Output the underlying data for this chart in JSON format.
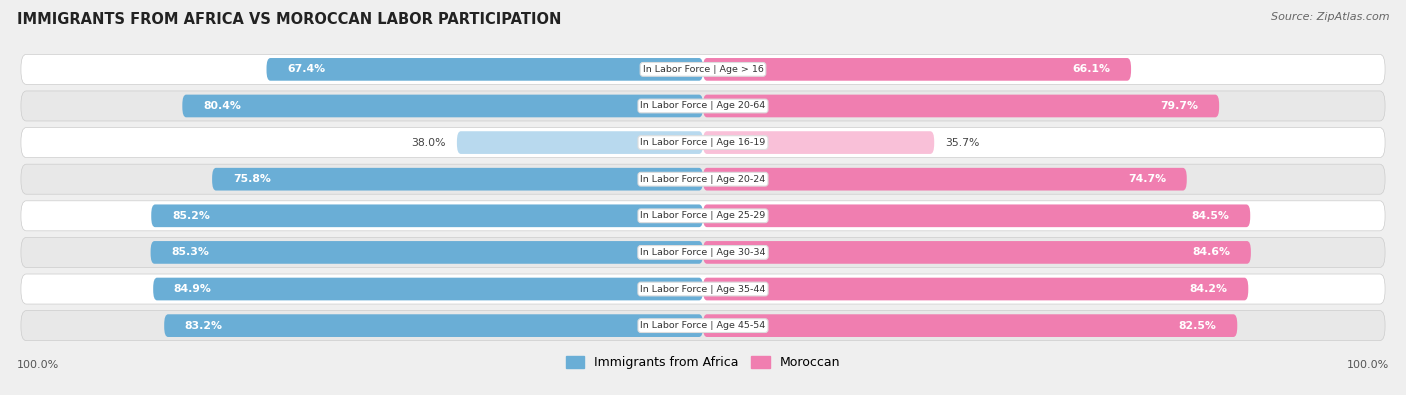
{
  "title": "IMMIGRANTS FROM AFRICA VS MOROCCAN LABOR PARTICIPATION",
  "source": "Source: ZipAtlas.com",
  "categories": [
    "In Labor Force | Age > 16",
    "In Labor Force | Age 20-64",
    "In Labor Force | Age 16-19",
    "In Labor Force | Age 20-24",
    "In Labor Force | Age 25-29",
    "In Labor Force | Age 30-34",
    "In Labor Force | Age 35-44",
    "In Labor Force | Age 45-54"
  ],
  "africa_values": [
    67.4,
    80.4,
    38.0,
    75.8,
    85.2,
    85.3,
    84.9,
    83.2
  ],
  "moroccan_values": [
    66.1,
    79.7,
    35.7,
    74.7,
    84.5,
    84.6,
    84.2,
    82.5
  ],
  "africa_color": "#6AAED6",
  "africa_color_light": "#B8D9EE",
  "moroccan_color": "#F07EB0",
  "moroccan_color_light": "#F9C0D8",
  "background_color": "#efefef",
  "row_bg_even": "#ffffff",
  "row_bg_odd": "#e8e8e8",
  "legend_africa": "Immigrants from Africa",
  "legend_moroccan": "Moroccan",
  "x_left_label": "100.0%",
  "x_right_label": "100.0%"
}
